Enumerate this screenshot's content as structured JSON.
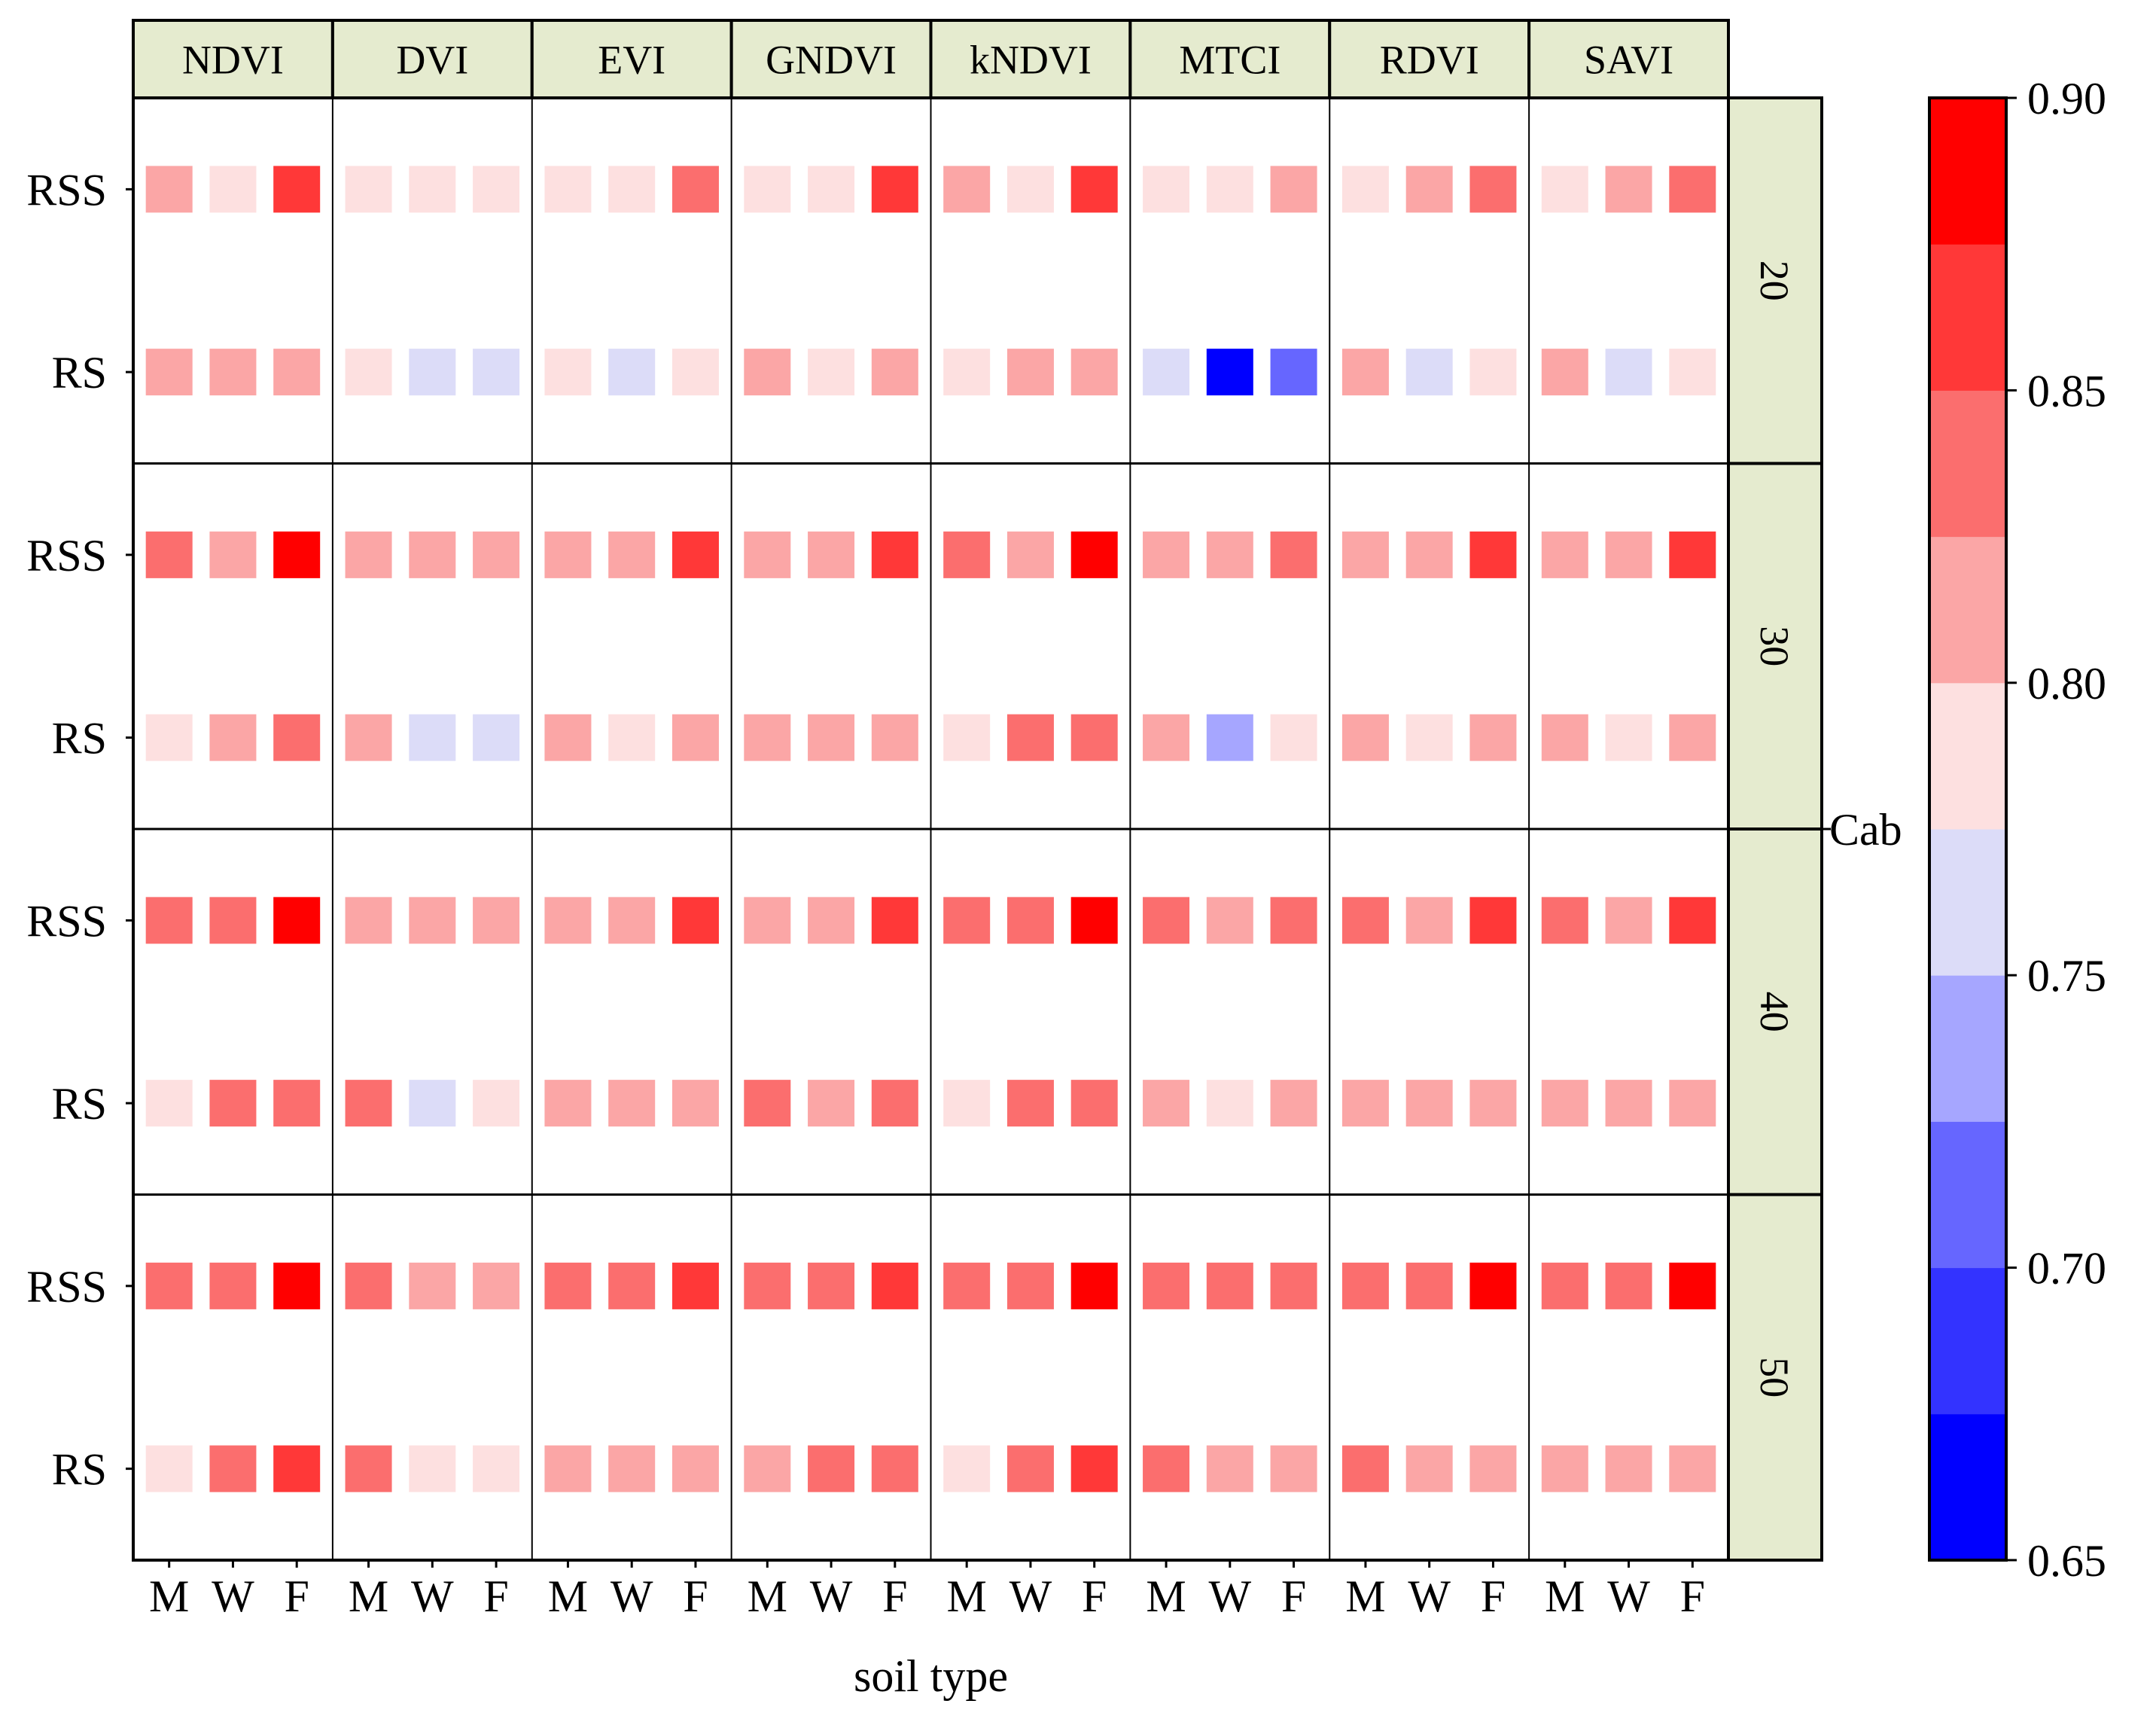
{
  "chart_data": {
    "type": "heatmap",
    "xlabel": "soil type",
    "facet_label": "Cab",
    "indices": [
      "NDVI",
      "DVI",
      "EVI",
      "GNDVI",
      "kNDVI",
      "MTCI",
      "RDVI",
      "SAVI"
    ],
    "soil_types": [
      "M",
      "W",
      "F"
    ],
    "rows": [
      "RSS",
      "RS"
    ],
    "cab_levels": [
      "20",
      "30",
      "40",
      "50"
    ],
    "colorbar": {
      "min": 0.65,
      "max": 0.9,
      "step": 0.025,
      "tick_values": [
        0.65,
        0.7,
        0.75,
        0.8,
        0.85,
        0.9
      ],
      "tick_labels": [
        "0.65",
        "0.70",
        "0.75",
        "0.80",
        "0.85",
        "0.90"
      ],
      "bin_colors": [
        "#0000ff",
        "#3333ff",
        "#6666ff",
        "#a6a6ff",
        "#dcdcf8",
        "#fde0e0",
        "#fba6a6",
        "#fb6e6e",
        "#ff3838",
        "#ff0000"
      ]
    },
    "values": {
      "20": {
        "RSS": [
          [
            0.81,
            0.79,
            0.87
          ],
          [
            0.79,
            0.79,
            0.79
          ],
          [
            0.79,
            0.79,
            0.84
          ],
          [
            0.79,
            0.79,
            0.86
          ],
          [
            0.81,
            0.79,
            0.87
          ],
          [
            0.79,
            0.79,
            0.81
          ],
          [
            0.79,
            0.81,
            0.84
          ],
          [
            0.79,
            0.81,
            0.84
          ]
        ],
        "RS": [
          [
            0.81,
            0.81,
            0.81
          ],
          [
            0.79,
            0.76,
            0.76
          ],
          [
            0.79,
            0.76,
            0.79
          ],
          [
            0.81,
            0.79,
            0.81
          ],
          [
            0.79,
            0.81,
            0.81
          ],
          [
            0.76,
            0.66,
            0.71
          ],
          [
            0.81,
            0.76,
            0.79
          ],
          [
            0.81,
            0.76,
            0.79
          ]
        ]
      },
      "30": {
        "RSS": [
          [
            0.84,
            0.81,
            0.89
          ],
          [
            0.81,
            0.81,
            0.81
          ],
          [
            0.81,
            0.81,
            0.86
          ],
          [
            0.81,
            0.81,
            0.86
          ],
          [
            0.84,
            0.81,
            0.89
          ],
          [
            0.81,
            0.81,
            0.84
          ],
          [
            0.81,
            0.81,
            0.86
          ],
          [
            0.81,
            0.81,
            0.86
          ]
        ],
        "RS": [
          [
            0.79,
            0.81,
            0.84
          ],
          [
            0.81,
            0.76,
            0.76
          ],
          [
            0.81,
            0.79,
            0.81
          ],
          [
            0.81,
            0.81,
            0.81
          ],
          [
            0.79,
            0.84,
            0.84
          ],
          [
            0.81,
            0.74,
            0.79
          ],
          [
            0.81,
            0.79,
            0.81
          ],
          [
            0.81,
            0.79,
            0.81
          ]
        ]
      },
      "40": {
        "RSS": [
          [
            0.84,
            0.84,
            0.89
          ],
          [
            0.81,
            0.81,
            0.81
          ],
          [
            0.81,
            0.81,
            0.86
          ],
          [
            0.81,
            0.81,
            0.86
          ],
          [
            0.84,
            0.84,
            0.89
          ],
          [
            0.84,
            0.81,
            0.84
          ],
          [
            0.84,
            0.81,
            0.86
          ],
          [
            0.84,
            0.81,
            0.86
          ]
        ],
        "RS": [
          [
            0.79,
            0.84,
            0.84
          ],
          [
            0.84,
            0.76,
            0.79
          ],
          [
            0.81,
            0.81,
            0.81
          ],
          [
            0.84,
            0.81,
            0.84
          ],
          [
            0.79,
            0.84,
            0.84
          ],
          [
            0.81,
            0.79,
            0.81
          ],
          [
            0.81,
            0.81,
            0.81
          ],
          [
            0.81,
            0.81,
            0.81
          ]
        ]
      },
      "50": {
        "RSS": [
          [
            0.84,
            0.84,
            0.89
          ],
          [
            0.84,
            0.81,
            0.81
          ],
          [
            0.84,
            0.84,
            0.86
          ],
          [
            0.84,
            0.84,
            0.86
          ],
          [
            0.84,
            0.84,
            0.89
          ],
          [
            0.84,
            0.84,
            0.84
          ],
          [
            0.84,
            0.84,
            0.89
          ],
          [
            0.84,
            0.84,
            0.89
          ]
        ],
        "RS": [
          [
            0.79,
            0.84,
            0.86
          ],
          [
            0.84,
            0.79,
            0.79
          ],
          [
            0.81,
            0.81,
            0.81
          ],
          [
            0.81,
            0.84,
            0.84
          ],
          [
            0.79,
            0.84,
            0.86
          ],
          [
            0.84,
            0.81,
            0.81
          ],
          [
            0.84,
            0.81,
            0.81
          ],
          [
            0.81,
            0.81,
            0.81
          ]
        ]
      }
    }
  }
}
